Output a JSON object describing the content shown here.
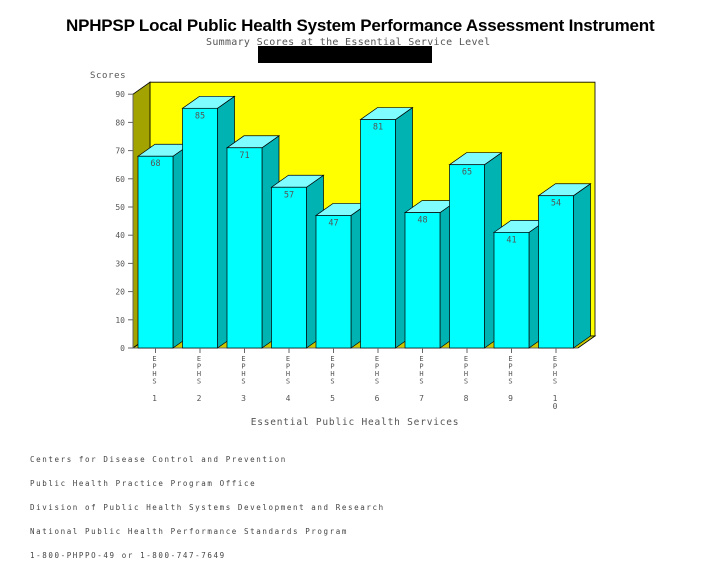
{
  "header": {
    "title": "NPHPSP Local Public Health System Performance Assessment Instrument",
    "subtitle": "Summary Scores at the Essential Service Level"
  },
  "chart_data": {
    "type": "bar",
    "title": "",
    "ylabel": "Scores",
    "xlabel": "Essential Public Health Services",
    "ylim": [
      0,
      90
    ],
    "yticks": [
      0,
      10,
      20,
      30,
      40,
      50,
      60,
      70,
      80,
      90
    ],
    "categories": [
      "EPHS 1",
      "EPHS 2",
      "EPHS 3",
      "EPHS 4",
      "EPHS 5",
      "EPHS 6",
      "EPHS 7",
      "EPHS 8",
      "EPHS 9",
      "EPHS 10"
    ],
    "category_prefix": "EPHS",
    "category_numbers": [
      "1",
      "2",
      "3",
      "4",
      "5",
      "6",
      "7",
      "8",
      "9",
      "10"
    ],
    "values": [
      68,
      85,
      71,
      57,
      47,
      81,
      48,
      65,
      41,
      54
    ],
    "value_labels": [
      "68",
      "85",
      "71",
      "57",
      "47",
      "81",
      "48",
      "65",
      "41",
      "54"
    ],
    "colors": {
      "background": "#ffff00",
      "side_wall": "#a3a300",
      "floor": "#c8c800",
      "bar_front": "#00ffff",
      "bar_top": "#7ffcff",
      "bar_side": "#00b3b3",
      "outline": "#000000"
    },
    "grid": false
  },
  "footer": {
    "lines": [
      "Centers for Disease Control and Prevention",
      "Public Health Practice Program Office",
      "Division of Public Health Systems Development and Research",
      "National Public Health Performance Standards Program",
      "1-800-PHPPO-49 or 1-800-747-7649"
    ]
  }
}
